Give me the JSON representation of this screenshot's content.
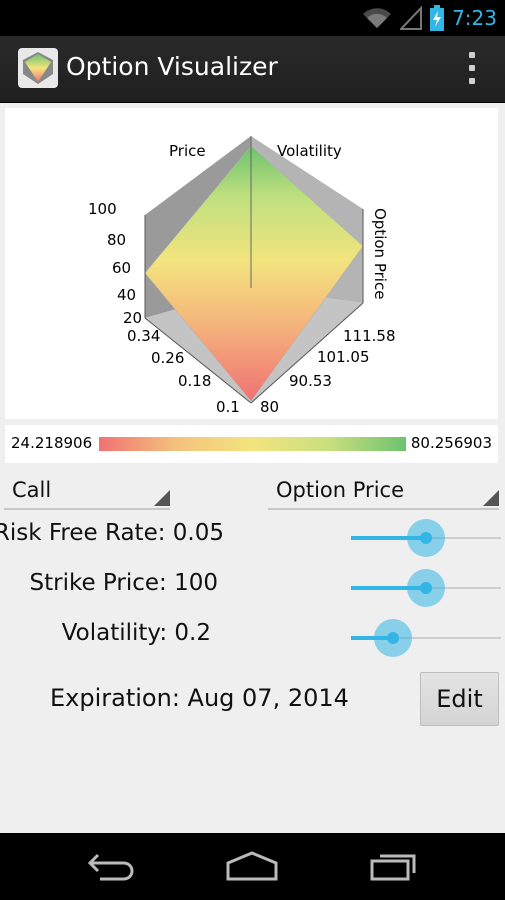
{
  "status_bar": {
    "time": "7:23",
    "icons": [
      "wifi-icon",
      "signal-icon",
      "battery-charging-icon"
    ]
  },
  "action_bar": {
    "title": "Option Visualizer",
    "app_icon": "surface-plot-app-icon",
    "overflow_icon": "overflow-menu-icon"
  },
  "plot": {
    "axis_labels": {
      "price": "Price",
      "volatility": "Volatility",
      "option_price": "Option Price"
    },
    "z_ticks": [
      "100",
      "80",
      "60",
      "40",
      "20"
    ],
    "volatility_ticks": [
      "0.34",
      "0.26",
      "0.18",
      "0.1"
    ],
    "price_ticks": [
      "111.58",
      "101.05",
      "90.53",
      "80"
    ]
  },
  "color_scale": {
    "min": "24.218906",
    "max": "80.256903",
    "colors": [
      "#f07272",
      "#f4c17d",
      "#f3e47e",
      "#c8df7d",
      "#6ec26e"
    ]
  },
  "controls": {
    "option_type": "Call",
    "plot_metric": "Option Price",
    "risk_free_rate": {
      "label": "Risk Free Rate: 0.05",
      "level": 0.5
    },
    "strike_price": {
      "label": "Strike Price: 100",
      "level": 0.5
    },
    "volatility": {
      "label": "Volatility: 0.2",
      "level": 0.28
    }
  },
  "expiration": {
    "label": "Expiration: Aug 07, 2014",
    "edit_label": "Edit"
  },
  "nav_bar": {
    "icons": [
      "back-icon",
      "home-icon",
      "recent-apps-icon"
    ]
  },
  "accent_color": "#33b5e5"
}
